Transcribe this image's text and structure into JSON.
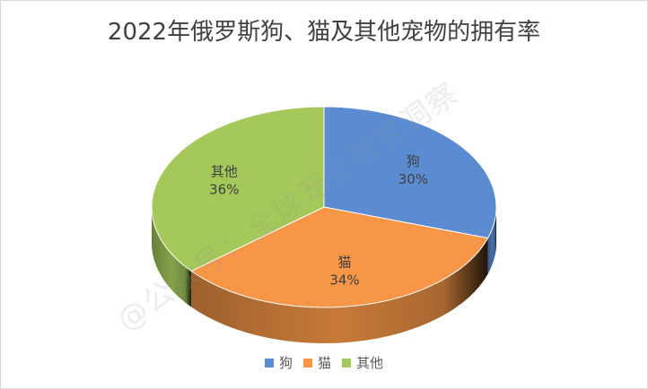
{
  "chart_data": {
    "type": "pie",
    "title": "2022年俄罗斯狗、猫及其他宠物的拥有率",
    "categories": [
      "狗",
      "猫",
      "其他"
    ],
    "values": [
      30,
      34,
      36
    ],
    "value_labels": [
      "30%",
      "34%",
      "36%"
    ],
    "colors": [
      "#5b8bd0",
      "#f79646",
      "#a5c85a"
    ],
    "legend_position": "bottom",
    "style": "3d"
  },
  "watermark": "@公众号：全球宠业研究洞察"
}
